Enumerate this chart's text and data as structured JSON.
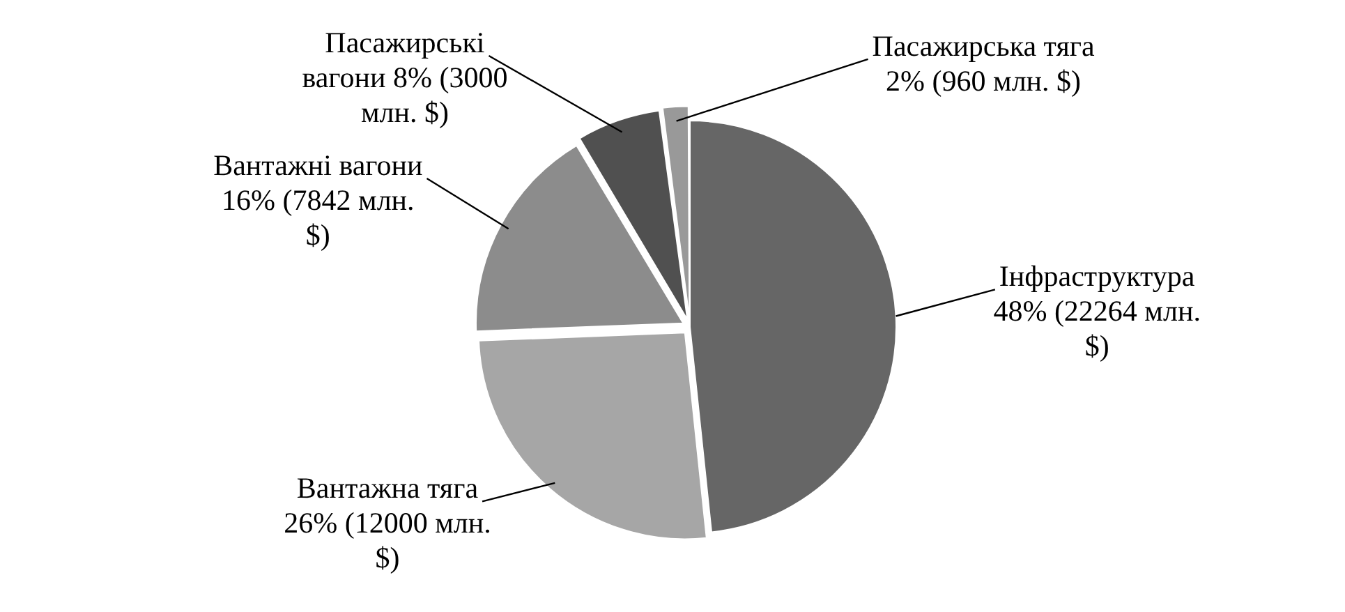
{
  "chart_data": {
    "type": "pie",
    "categories": [
      "Інфраструктура",
      "Вантажна тяга",
      "Вантажні вагони",
      "Пасажирські вагони",
      "Пасажирська тяга"
    ],
    "values": [
      22264,
      12000,
      7842,
      3000,
      960
    ],
    "value_labels": [
      "48% (22264 млн. $)",
      "26% (12000 млн. $)",
      "16% (7842 млн. $)",
      "8% (3000 млн. $)",
      "2% (960 млн. $)"
    ],
    "colors": [
      "#666666",
      "#a6a6a6",
      "#8c8c8c",
      "#505050",
      "#999999"
    ],
    "legend": false
  }
}
